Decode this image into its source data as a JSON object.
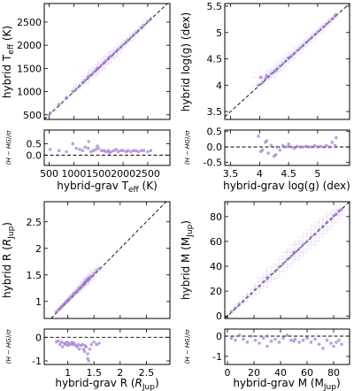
{
  "colors": {
    "points": "#9a6fd0",
    "errorbars": "#9a6fd0",
    "reference": "#000000"
  },
  "chart_data": [
    {
      "type": "scatter",
      "ylabel": "hybrid T_eff (K)",
      "xlabel": "hybrid-grav T_eff (K)",
      "resid_label": "(H − HG)/σ",
      "xlim": [
        400,
        2950
      ],
      "ylim": [
        400,
        2900
      ],
      "rlim": [
        -0.45,
        1.1
      ],
      "xticks": [
        500,
        1000,
        1500,
        2000,
        2500
      ],
      "yticks": [
        500,
        1000,
        1500,
        2000,
        2500
      ],
      "rticks": [
        0.0,
        0.5
      ],
      "x": [
        520,
        700,
        850,
        980,
        1050,
        1120,
        1180,
        1230,
        1290,
        1350,
        1400,
        1450,
        1500,
        1560,
        1610,
        1650,
        1700,
        1760,
        1810,
        1860,
        1900,
        1950,
        2000,
        2060,
        2100,
        2160,
        2210,
        2260,
        2310,
        2370,
        2420,
        2500,
        2560,
        1300,
        1480,
        1720
      ],
      "y": [
        540,
        720,
        870,
        1000,
        1060,
        1130,
        1195,
        1245,
        1300,
        1360,
        1415,
        1460,
        1510,
        1570,
        1620,
        1660,
        1710,
        1770,
        1820,
        1870,
        1910,
        1960,
        2010,
        2070,
        2110,
        2170,
        2220,
        2270,
        2320,
        2380,
        2430,
        2510,
        2570,
        1330,
        1500,
        1740
      ],
      "resid": [
        0.25,
        0.2,
        0.15,
        0.5,
        0.3,
        0.25,
        0.2,
        0.35,
        0.3,
        0.15,
        0.2,
        0.25,
        0.3,
        0.2,
        0.2,
        0.15,
        0.2,
        0.15,
        0.2,
        0.25,
        0.15,
        0.2,
        0.2,
        0.15,
        0.2,
        0.15,
        0.2,
        0.2,
        0.15,
        0.2,
        0.2,
        0.15,
        0.2,
        0.6,
        0.4,
        0.1
      ],
      "xerr": [
        60,
        80,
        80,
        100,
        100,
        100,
        90,
        100,
        120,
        120,
        150,
        150,
        150,
        150,
        150,
        150,
        150,
        150,
        150,
        150,
        120,
        120,
        120,
        120,
        100,
        100,
        100,
        90,
        90,
        80,
        80,
        70,
        70,
        180,
        180,
        160
      ],
      "yerr": [
        60,
        80,
        80,
        100,
        100,
        100,
        90,
        100,
        120,
        120,
        150,
        150,
        150,
        150,
        150,
        150,
        150,
        150,
        150,
        150,
        120,
        120,
        120,
        120,
        100,
        100,
        100,
        90,
        90,
        80,
        80,
        70,
        70,
        180,
        180,
        160
      ]
    },
    {
      "type": "scatter",
      "ylabel": "hybrid log(g) (dex)",
      "xlabel": "hybrid-grav log(g) (dex)",
      "resid_label": "(H − HG)/σ",
      "xlim": [
        3.4,
        5.55
      ],
      "ylim": [
        3.35,
        5.55
      ],
      "rlim": [
        -0.6,
        0.55
      ],
      "xticks": [
        3.5,
        4.0,
        4.5,
        5.0
      ],
      "yticks": [
        3.5,
        4.0,
        4.5,
        5.0,
        5.5
      ],
      "rticks": [
        -0.5,
        0.0,
        0.5
      ],
      "x": [
        3.98,
        4.05,
        4.1,
        4.15,
        4.2,
        4.25,
        4.3,
        4.35,
        4.4,
        4.45,
        4.5,
        4.55,
        4.6,
        4.65,
        4.7,
        4.75,
        4.8,
        4.85,
        4.9,
        4.95,
        5.0,
        5.05,
        5.1,
        5.15,
        5.2,
        5.25,
        5.3,
        5.32,
        4.02,
        4.12,
        4.28,
        4.5
      ],
      "y": [
        4.0,
        4.05,
        4.12,
        4.16,
        4.22,
        4.26,
        4.31,
        4.36,
        4.41,
        4.46,
        4.51,
        4.56,
        4.61,
        4.66,
        4.71,
        4.76,
        4.81,
        4.86,
        4.91,
        4.96,
        5.01,
        5.06,
        5.11,
        5.16,
        5.21,
        5.26,
        5.31,
        5.34,
        4.15,
        4.18,
        4.28,
        4.52
      ],
      "resid": [
        0.35,
        -0.1,
        0.15,
        -0.2,
        0.05,
        -0.3,
        0.0,
        -0.1,
        0.05,
        0.0,
        0.02,
        0.0,
        -0.05,
        0.02,
        0.0,
        0.0,
        0.02,
        0.0,
        0.0,
        0.05,
        0.0,
        0.02,
        0.0,
        0.05,
        0.0,
        0.15,
        0.05,
        0.3,
        -0.15,
        0.2,
        -0.25,
        0.1
      ],
      "xerr": [
        0.1,
        0.1,
        0.12,
        0.1,
        0.1,
        0.15,
        0.15,
        0.12,
        0.1,
        0.15,
        0.12,
        0.1,
        0.15,
        0.1,
        0.12,
        0.1,
        0.1,
        0.12,
        0.1,
        0.1,
        0.1,
        0.08,
        0.1,
        0.08,
        0.08,
        0.08,
        0.06,
        0.06,
        0.15,
        0.12,
        0.15,
        0.12
      ],
      "yerr": [
        0.1,
        0.1,
        0.12,
        0.1,
        0.1,
        0.15,
        0.15,
        0.12,
        0.1,
        0.15,
        0.12,
        0.1,
        0.15,
        0.1,
        0.12,
        0.1,
        0.1,
        0.12,
        0.1,
        0.1,
        0.1,
        0.08,
        0.1,
        0.08,
        0.08,
        0.08,
        0.06,
        0.06,
        0.15,
        0.12,
        0.15,
        0.12
      ]
    },
    {
      "type": "scatter",
      "ylabel": "hybrid R (R_Jup)",
      "xlabel": "hybrid-grav R (R_Jup)",
      "resid_label": "(H − HG)/σ",
      "xlim": [
        0.55,
        2.95
      ],
      "ylim": [
        0.68,
        2.88
      ],
      "rlim": [
        -1.15,
        0.35
      ],
      "xticks": [
        1.0,
        1.5,
        2.0,
        2.5
      ],
      "yticks": [
        1.0,
        1.5,
        2.0,
        2.5
      ],
      "rticks": [
        -1,
        0
      ],
      "x": [
        0.78,
        0.82,
        0.85,
        0.88,
        0.9,
        0.93,
        0.95,
        0.98,
        1.0,
        1.02,
        1.05,
        1.08,
        1.1,
        1.12,
        1.15,
        1.18,
        1.2,
        1.22,
        1.25,
        1.28,
        1.3,
        1.32,
        1.35,
        1.38,
        1.4,
        1.42,
        1.45,
        1.5,
        1.55,
        1.6,
        1.38,
        1.33
      ],
      "y": [
        0.8,
        0.84,
        0.87,
        0.9,
        0.92,
        0.95,
        0.97,
        1.0,
        1.02,
        1.04,
        1.07,
        1.1,
        1.12,
        1.15,
        1.17,
        1.2,
        1.22,
        1.25,
        1.27,
        1.3,
        1.32,
        1.35,
        1.38,
        1.4,
        1.43,
        1.45,
        1.48,
        1.53,
        1.58,
        1.62,
        1.42,
        1.36
      ],
      "resid": [
        -0.2,
        -0.15,
        -0.3,
        -0.2,
        -0.4,
        -0.25,
        -0.3,
        -0.2,
        -0.35,
        -0.25,
        -0.3,
        -0.2,
        -0.3,
        -0.25,
        -0.35,
        -0.4,
        -0.3,
        -0.5,
        -0.35,
        -0.3,
        -0.5,
        -0.6,
        -0.4,
        -0.9,
        -1.0,
        -0.5,
        -0.3,
        -0.2,
        -0.3,
        -0.25,
        -0.7,
        -0.35
      ],
      "xerr": [
        0.04,
        0.04,
        0.05,
        0.05,
        0.05,
        0.06,
        0.06,
        0.06,
        0.07,
        0.07,
        0.07,
        0.08,
        0.08,
        0.08,
        0.08,
        0.09,
        0.09,
        0.09,
        0.1,
        0.1,
        0.1,
        0.1,
        0.11,
        0.11,
        0.11,
        0.12,
        0.12,
        0.12,
        0.13,
        0.13,
        0.11,
        0.1
      ],
      "yerr": [
        0.04,
        0.04,
        0.05,
        0.05,
        0.05,
        0.06,
        0.06,
        0.06,
        0.07,
        0.07,
        0.07,
        0.08,
        0.08,
        0.08,
        0.08,
        0.09,
        0.09,
        0.09,
        0.1,
        0.1,
        0.1,
        0.1,
        0.11,
        0.11,
        0.11,
        0.12,
        0.12,
        0.12,
        0.13,
        0.13,
        0.11,
        0.1
      ]
    },
    {
      "type": "scatter",
      "ylabel": "hybrid M (M_Jup)",
      "xlabel": "hybrid-grav M (M_Jup)",
      "resid_label": "(H − HG)/σ",
      "xlim": [
        -2,
        92
      ],
      "ylim": [
        -2,
        92
      ],
      "rlim": [
        -1.4,
        0.35
      ],
      "xticks": [
        0,
        20,
        40,
        60,
        80
      ],
      "yticks": [
        0,
        20,
        40,
        60,
        80
      ],
      "rticks": [
        -1,
        0
      ],
      "x": [
        3,
        6,
        9,
        12,
        15,
        18,
        21,
        24,
        27,
        30,
        33,
        36,
        39,
        42,
        45,
        48,
        51,
        54,
        57,
        60,
        63,
        66,
        69,
        72,
        75,
        78,
        80,
        82,
        84,
        86,
        30,
        50
      ],
      "y": [
        3.5,
        6.5,
        9.5,
        12,
        15.5,
        18,
        21.5,
        24,
        27.5,
        30,
        33.5,
        36,
        39.5,
        42,
        45.5,
        48,
        51.5,
        54,
        57.5,
        60,
        63.5,
        66,
        69.5,
        72,
        75.5,
        78,
        80.5,
        82,
        84.5,
        86,
        31,
        51
      ],
      "resid": [
        -0.1,
        -0.2,
        0.05,
        -0.15,
        -0.3,
        0.0,
        -0.2,
        -0.35,
        -0.1,
        0.0,
        -0.25,
        -0.15,
        -0.3,
        -0.1,
        0.05,
        -0.2,
        -0.15,
        -0.3,
        -0.2,
        -0.1,
        -0.3,
        -0.15,
        -0.4,
        -0.6,
        -0.2,
        -0.35,
        -0.5,
        -0.3,
        -0.2,
        -0.4,
        -0.5,
        -0.25
      ],
      "xerr": [
        2,
        3,
        3,
        4,
        4,
        5,
        5,
        6,
        6,
        7,
        7,
        8,
        8,
        8,
        9,
        9,
        9,
        10,
        10,
        10,
        10,
        10,
        10,
        9,
        9,
        8,
        8,
        7,
        6,
        5,
        10,
        9
      ],
      "yerr": [
        2,
        3,
        3,
        4,
        4,
        5,
        5,
        6,
        6,
        7,
        7,
        8,
        8,
        8,
        9,
        9,
        9,
        10,
        10,
        10,
        10,
        10,
        10,
        9,
        9,
        8,
        8,
        7,
        6,
        5,
        10,
        9
      ]
    }
  ]
}
